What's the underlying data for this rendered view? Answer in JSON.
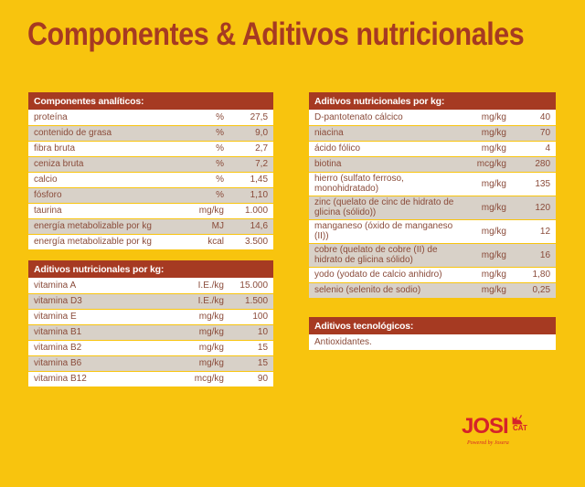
{
  "title": "Componentes & Aditivos nutricionales",
  "analytic": {
    "header": "Componentes analíticos:",
    "rows": [
      {
        "name": "proteína",
        "unit": "%",
        "value": "27,5"
      },
      {
        "name": "contenido de grasa",
        "unit": "%",
        "value": "9,0"
      },
      {
        "name": "fibra bruta",
        "unit": "%",
        "value": "2,7"
      },
      {
        "name": "ceniza bruta",
        "unit": "%",
        "value": "7,2"
      },
      {
        "name": "calcio",
        "unit": "%",
        "value": "1,45"
      },
      {
        "name": "fósforo",
        "unit": "%",
        "value": "1,10"
      },
      {
        "name": "taurina",
        "unit": "mg/kg",
        "value": "1.000"
      },
      {
        "name": "energía metabolizable por kg",
        "unit": "MJ",
        "value": "14,6"
      },
      {
        "name": "energía metabolizable por kg",
        "unit": "kcal",
        "value": "3.500"
      }
    ]
  },
  "vitamins": {
    "header": "Aditivos nutricionales por kg:",
    "rows": [
      {
        "name": "vitamina A",
        "unit": "I.E./kg",
        "value": "15.000"
      },
      {
        "name": "vitamina D3",
        "unit": "I.E./kg",
        "value": "1.500"
      },
      {
        "name": "vitamina E",
        "unit": "mg/kg",
        "value": "100"
      },
      {
        "name": "vitamina B1",
        "unit": "mg/kg",
        "value": "10"
      },
      {
        "name": "vitamina B2",
        "unit": "mg/kg",
        "value": "15"
      },
      {
        "name": "vitamina B6",
        "unit": "mg/kg",
        "value": "15"
      },
      {
        "name": "vitamina B12",
        "unit": "mcg/kg",
        "value": "90"
      }
    ]
  },
  "additives": {
    "header": "Aditivos nutricionales por kg:",
    "rows": [
      {
        "name": "D-pantotenato cálcico",
        "unit": "mg/kg",
        "value": "40"
      },
      {
        "name": "niacina",
        "unit": "mg/kg",
        "value": "70"
      },
      {
        "name": "ácido fólico",
        "unit": "mg/kg",
        "value": "4"
      },
      {
        "name": "biotina",
        "unit": "mcg/kg",
        "value": "280"
      },
      {
        "name": "hierro (sulfato ferroso, monohidratado)",
        "unit": "mg/kg",
        "value": "135"
      },
      {
        "name": "zinc (quelato de cinc de hidrato de glicina (sólido))",
        "unit": "mg/kg",
        "value": "120"
      },
      {
        "name": "manganeso (óxido de manganeso (II))",
        "unit": "mg/kg",
        "value": "12"
      },
      {
        "name": "cobre (quelato de cobre (II) de hidrato de glicina sólido)",
        "unit": "mg/kg",
        "value": "16"
      },
      {
        "name": "yodo (yodato de calcio anhidro)",
        "unit": "mg/kg",
        "value": "1,80"
      },
      {
        "name": "selenio (selenito de sodio)",
        "unit": "mg/kg",
        "value": "0,25"
      }
    ]
  },
  "technological": {
    "header": "Aditivos tecnológicos:",
    "text": "Antioxidantes."
  },
  "logo": {
    "brand": "JOSI",
    "sub": "CAT",
    "powered": "Powered by Josera",
    "color": "#d5232a"
  },
  "colors": {
    "background": "#f8c40e",
    "header": "#a63a22",
    "stripe": "#d8d1c8"
  }
}
